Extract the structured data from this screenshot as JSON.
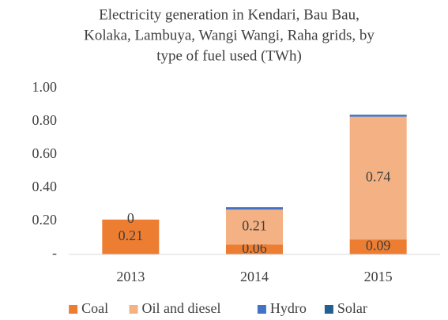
{
  "chart_data": {
    "type": "stacked_bar",
    "title": [
      "Electricity generation in Kendari, Bau Bau,",
      "Kolaka, Lambuya, Wangi Wangi, Raha grids, by",
      "type of fuel used (TWh)"
    ],
    "categories": [
      "2013",
      "2014",
      "2015"
    ],
    "series": [
      {
        "name": "Coal",
        "color": "#ed7d31",
        "values": [
          0.21,
          0.06,
          0.09
        ],
        "data_labels": true
      },
      {
        "name": "Oil and diesel",
        "color": "#f4b183",
        "values": [
          0,
          0.21,
          0.74
        ],
        "data_labels": true
      },
      {
        "name": "Hydro",
        "color": "#4472c4",
        "values": [
          0,
          0.015,
          0.01
        ],
        "data_labels": false
      },
      {
        "name": "Solar",
        "color": "#255e91",
        "values": [
          0,
          0,
          0.002
        ],
        "data_labels": false
      }
    ],
    "ylim": [
      0,
      1
    ],
    "yticks": [
      {
        "value": 0,
        "label": "-"
      },
      {
        "value": 0.2,
        "label": "0.20"
      },
      {
        "value": 0.4,
        "label": "0.40"
      },
      {
        "value": 0.6,
        "label": "0.60"
      },
      {
        "value": 0.8,
        "label": "0.80"
      },
      {
        "value": 1,
        "label": "1.00"
      }
    ],
    "grid": false,
    "legend": "bottom"
  }
}
